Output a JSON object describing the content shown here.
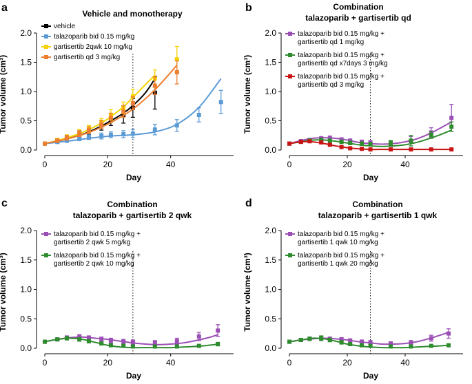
{
  "chart_data": [
    {
      "panel": "a",
      "type": "line",
      "title": "Vehicle and monotherapy",
      "title_lines": [
        "Vehicle and monotherapy"
      ],
      "xlabel": "Day",
      "ylabel": "Tumor volume (cm³)",
      "xlim": [
        0,
        60
      ],
      "ylim": [
        0,
        2.0
      ],
      "xticks": [
        0,
        20,
        40
      ],
      "yticks": [
        0.0,
        0.5,
        1.0,
        1.5,
        2.0
      ],
      "ytick_labels": [
        "0.0",
        "0.5",
        "1.0",
        "1.5",
        "2.0"
      ],
      "vline_x": 28,
      "series": [
        {
          "name": "vehicle",
          "legend_lines": [
            "vehicle"
          ],
          "color": "#000000",
          "x": [
            0,
            4,
            7,
            11,
            14,
            18,
            21,
            25,
            28,
            35
          ],
          "y": [
            0.11,
            0.16,
            0.2,
            0.27,
            0.33,
            0.42,
            0.52,
            0.6,
            0.72,
            0.98
          ],
          "err": [
            0.02,
            0.03,
            0.04,
            0.06,
            0.06,
            0.08,
            0.1,
            0.14,
            0.16,
            0.28
          ],
          "fit_x": [
            0,
            4,
            7,
            11,
            14,
            18,
            21,
            25,
            28,
            32,
            35
          ],
          "fit_y": [
            0.11,
            0.15,
            0.19,
            0.25,
            0.31,
            0.41,
            0.5,
            0.63,
            0.76,
            0.98,
            1.22
          ]
        },
        {
          "name": "talazoparib bid 0.15 mg/kg",
          "legend_lines": [
            "talazoparib bid 0.15 mg/kg"
          ],
          "color": "#5b9bd5",
          "x": [
            0,
            4,
            7,
            11,
            14,
            18,
            21,
            25,
            28,
            35,
            42,
            49,
            56
          ],
          "y": [
            0.11,
            0.14,
            0.17,
            0.2,
            0.22,
            0.24,
            0.26,
            0.27,
            0.28,
            0.35,
            0.42,
            0.6,
            0.82
          ],
          "err": [
            0.02,
            0.03,
            0.04,
            0.04,
            0.04,
            0.05,
            0.05,
            0.06,
            0.07,
            0.09,
            0.1,
            0.12,
            0.2
          ],
          "fit_x": [
            0,
            7,
            14,
            21,
            28,
            35,
            42,
            49,
            56
          ],
          "fit_y": [
            0.11,
            0.15,
            0.2,
            0.24,
            0.26,
            0.31,
            0.44,
            0.73,
            1.22
          ]
        },
        {
          "name": "gartisertib 2qwk 10 mg/kg",
          "legend_lines": [
            "gartisertib 2qwk 10 mg/kg"
          ],
          "color": "#f5d200",
          "x": [
            0,
            4,
            7,
            11,
            14,
            18,
            21,
            25,
            28,
            35,
            42
          ],
          "y": [
            0.11,
            0.17,
            0.22,
            0.3,
            0.36,
            0.47,
            0.6,
            0.72,
            0.92,
            1.22,
            1.55
          ],
          "err": [
            0.02,
            0.03,
            0.04,
            0.05,
            0.06,
            0.07,
            0.09,
            0.1,
            0.12,
            0.15,
            0.22
          ],
          "fit_x": [
            0,
            4,
            7,
            11,
            14,
            18,
            21,
            25,
            28,
            32,
            35
          ],
          "fit_y": [
            0.11,
            0.16,
            0.21,
            0.28,
            0.35,
            0.46,
            0.57,
            0.74,
            0.9,
            1.12,
            1.28
          ]
        },
        {
          "name": "gartisertib qd 3 mg/kg",
          "legend_lines": [
            "gartisertib qd 3 mg/kg"
          ],
          "color": "#ed7d31",
          "x": [
            0,
            4,
            7,
            11,
            14,
            18,
            21,
            25,
            28,
            35,
            42
          ],
          "y": [
            0.11,
            0.16,
            0.21,
            0.28,
            0.34,
            0.44,
            0.55,
            0.66,
            0.8,
            1.1,
            1.33
          ],
          "err": [
            0.02,
            0.03,
            0.04,
            0.05,
            0.06,
            0.07,
            0.08,
            0.1,
            0.11,
            0.15,
            0.2
          ],
          "fit_x": [
            0,
            7,
            14,
            21,
            28,
            35,
            42
          ],
          "fit_y": [
            0.11,
            0.19,
            0.3,
            0.47,
            0.7,
            1.03,
            1.45
          ]
        }
      ]
    },
    {
      "panel": "b",
      "type": "line",
      "title": "Combination talazoparib + gartisertib qd",
      "title_lines": [
        "Combination",
        "talazoparib + gartisertib qd"
      ],
      "xlabel": "Day",
      "ylabel": "Tumor volume (cm³)",
      "xlim": [
        0,
        60
      ],
      "ylim": [
        0,
        2.0
      ],
      "xticks": [
        0,
        20,
        40
      ],
      "yticks": [
        0.0,
        0.5,
        1.0,
        1.5,
        2.0
      ],
      "ytick_labels": [
        "0.0",
        "0.5",
        "1.0",
        "1.5",
        "2.0"
      ],
      "vline_x": 28,
      "series": [
        {
          "name": "talazoparib bid 0.15 mg/kg + gartisertib qd 1 mg/kg",
          "legend_lines": [
            "talazoparib bid 0.15 mg/kg +",
            "gartisertib qd 1 mg/kg"
          ],
          "color": "#9b4fb5",
          "x": [
            0,
            4,
            7,
            11,
            14,
            18,
            21,
            25,
            28,
            35,
            42,
            49,
            56
          ],
          "y": [
            0.11,
            0.15,
            0.17,
            0.19,
            0.2,
            0.17,
            0.15,
            0.13,
            0.12,
            0.11,
            0.15,
            0.3,
            0.55
          ],
          "err": [
            0.02,
            0.03,
            0.03,
            0.04,
            0.04,
            0.04,
            0.04,
            0.04,
            0.04,
            0.05,
            0.08,
            0.08,
            0.23
          ],
          "fit_x": [
            0,
            4,
            8,
            12,
            16,
            20,
            24,
            28,
            32,
            36,
            40,
            44,
            48,
            52,
            56
          ],
          "fit_y": [
            0.11,
            0.16,
            0.2,
            0.21,
            0.2,
            0.17,
            0.13,
            0.11,
            0.1,
            0.11,
            0.14,
            0.19,
            0.27,
            0.37,
            0.48
          ]
        },
        {
          "name": "talazoparib bid 0.15 mg/kg + gartisertib qd x7days 3 mg/kg",
          "legend_lines": [
            "talazoparib bid 0.15 mg/kg +",
            "gartisertib qd x7days 3 mg/kg"
          ],
          "color": "#2e8b2e",
          "x": [
            0,
            4,
            7,
            11,
            14,
            18,
            21,
            25,
            28,
            35,
            42,
            49,
            56
          ],
          "y": [
            0.11,
            0.14,
            0.16,
            0.17,
            0.16,
            0.14,
            0.12,
            0.11,
            0.1,
            0.12,
            0.16,
            0.26,
            0.4
          ],
          "err": [
            0.02,
            0.02,
            0.03,
            0.03,
            0.03,
            0.03,
            0.03,
            0.03,
            0.03,
            0.04,
            0.09,
            0.06,
            0.08
          ],
          "fit_x": [
            0,
            4,
            8,
            12,
            16,
            20,
            24,
            28,
            32,
            36,
            40,
            44,
            48,
            52,
            56
          ],
          "fit_y": [
            0.11,
            0.14,
            0.17,
            0.17,
            0.15,
            0.12,
            0.09,
            0.07,
            0.06,
            0.07,
            0.09,
            0.13,
            0.19,
            0.26,
            0.34
          ]
        },
        {
          "name": "talazoparib bid 0.15 mg/kg + gartisertib qd 3 mg/kg",
          "legend_lines": [
            "talazoparib bid 0.15 mg/kg +",
            "gartisertib qd 3 mg/kg"
          ],
          "color": "#c81414",
          "x": [
            0,
            4,
            7,
            11,
            14,
            18,
            21,
            25,
            28,
            35,
            42,
            49,
            56
          ],
          "y": [
            0.11,
            0.14,
            0.15,
            0.13,
            0.09,
            0.05,
            0.03,
            0.02,
            0.01,
            0.01,
            0.01,
            0.01,
            0.01
          ],
          "err": [
            0.02,
            0.02,
            0.02,
            0.02,
            0.02,
            0.01,
            0.01,
            0.01,
            0.01,
            0.01,
            0.01,
            0.01,
            0.01
          ],
          "fit_x": [
            0,
            4,
            8,
            12,
            16,
            20,
            24,
            28,
            32,
            36,
            40,
            44,
            48,
            52,
            56
          ],
          "fit_y": [
            0.11,
            0.14,
            0.14,
            0.11,
            0.07,
            0.04,
            0.02,
            0.01,
            0.01,
            0.01,
            0.01,
            0.01,
            0.01,
            0.01,
            0.01
          ]
        }
      ]
    },
    {
      "panel": "c",
      "type": "line",
      "title": "Combination talazoparib + gartisertib 2 qwk",
      "title_lines": [
        "Combination",
        "talazoparib + gartisertib 2 qwk"
      ],
      "xlabel": "Day",
      "ylabel": "Tumor volume (cm³)",
      "xlim": [
        0,
        60
      ],
      "ylim": [
        0,
        2.0
      ],
      "xticks": [
        0,
        20,
        40
      ],
      "yticks": [
        0.0,
        0.5,
        1.0,
        1.5,
        2.0
      ],
      "ytick_labels": [
        "0.0",
        "0.5",
        "1.0",
        "1.5",
        "2.0"
      ],
      "vline_x": 28,
      "series": [
        {
          "name": "talazoparib bid 0.15 mg/kg + gartisertib 2 qwk 5 mg/kg",
          "legend_lines": [
            "talazoparib bid 0.15 mg/kg +",
            "gartisertib 2 qwk 5 mg/kg"
          ],
          "color": "#9b4fb5",
          "x": [
            0,
            4,
            7,
            11,
            14,
            18,
            21,
            25,
            28,
            35,
            42,
            49,
            55
          ],
          "y": [
            0.11,
            0.15,
            0.18,
            0.19,
            0.17,
            0.15,
            0.13,
            0.11,
            0.1,
            0.09,
            0.12,
            0.2,
            0.3
          ],
          "err": [
            0.02,
            0.02,
            0.03,
            0.04,
            0.04,
            0.04,
            0.04,
            0.04,
            0.04,
            0.04,
            0.05,
            0.07,
            0.1
          ],
          "fit_x": [
            0,
            4,
            8,
            12,
            16,
            20,
            24,
            28,
            32,
            36,
            40,
            44,
            48,
            52,
            55
          ],
          "fit_y": [
            0.11,
            0.15,
            0.18,
            0.19,
            0.17,
            0.15,
            0.12,
            0.09,
            0.07,
            0.06,
            0.07,
            0.09,
            0.13,
            0.18,
            0.23
          ]
        },
        {
          "name": "talazoparib bid 0.15 mg/kg + gartisertib 2 qwk 10 mg/kg",
          "legend_lines": [
            "talazoparib bid 0.15 mg/kg +",
            "gartisertib 2 qwk 10 mg/kg"
          ],
          "color": "#2e8b2e",
          "x": [
            0,
            4,
            7,
            11,
            14,
            18,
            21,
            25,
            28,
            35,
            42,
            49,
            55
          ],
          "y": [
            0.11,
            0.15,
            0.17,
            0.15,
            0.12,
            0.08,
            0.05,
            0.04,
            0.03,
            0.03,
            0.03,
            0.04,
            0.07
          ],
          "err": [
            0.02,
            0.02,
            0.03,
            0.03,
            0.03,
            0.02,
            0.02,
            0.02,
            0.01,
            0.01,
            0.01,
            0.01,
            0.03
          ],
          "fit_x": [
            0,
            4,
            8,
            12,
            16,
            20,
            24,
            28,
            32,
            36,
            40,
            44,
            48,
            52,
            55
          ],
          "fit_y": [
            0.11,
            0.15,
            0.17,
            0.15,
            0.1,
            0.05,
            0.02,
            0.01,
            0.01,
            0.01,
            0.01,
            0.02,
            0.03,
            0.05,
            0.07
          ]
        }
      ]
    },
    {
      "panel": "d",
      "type": "line",
      "title": "Combination talazoparib + gartisertib 1 qwk",
      "title_lines": [
        "Combination",
        "talazoparib + gartisertib 1 qwk"
      ],
      "xlabel": "Day",
      "ylabel": "Tumor volume (cm³)",
      "xlim": [
        0,
        60
      ],
      "ylim": [
        0,
        2.0
      ],
      "xticks": [
        0,
        20,
        40
      ],
      "yticks": [
        0.0,
        0.5,
        1.0,
        1.5,
        2.0
      ],
      "ytick_labels": [
        "0.0",
        "0.5",
        "1.0",
        "1.5",
        "2.0"
      ],
      "vline_x": 28,
      "series": [
        {
          "name": "talazoparib bid 0.15 mg/kg + gartisertib 1 qwk 10 mg/kg",
          "legend_lines": [
            "talazoparib bid 0.15 mg/kg +",
            "gartisertib 1 qwk 10 mg/kg"
          ],
          "color": "#9b4fb5",
          "x": [
            0,
            4,
            7,
            11,
            14,
            18,
            21,
            25,
            28,
            35,
            42,
            49,
            55
          ],
          "y": [
            0.11,
            0.14,
            0.16,
            0.17,
            0.16,
            0.15,
            0.13,
            0.11,
            0.1,
            0.08,
            0.1,
            0.17,
            0.25
          ],
          "err": [
            0.02,
            0.02,
            0.03,
            0.03,
            0.03,
            0.03,
            0.03,
            0.03,
            0.03,
            0.03,
            0.03,
            0.05,
            0.08
          ],
          "fit_x": [
            0,
            4,
            8,
            12,
            16,
            20,
            24,
            28,
            32,
            36,
            40,
            44,
            48,
            52,
            55
          ],
          "fit_y": [
            0.11,
            0.14,
            0.16,
            0.17,
            0.16,
            0.14,
            0.11,
            0.09,
            0.07,
            0.07,
            0.08,
            0.11,
            0.16,
            0.22,
            0.27
          ]
        },
        {
          "name": "talazoparib bid 0.15 mg/kg + gartisertib 1 qwk 20 mg/kg",
          "legend_lines": [
            "talazoparib bid 0.15 mg/kg +",
            "gartisertib 1 qwk 20 mg/kg"
          ],
          "color": "#2e8b2e",
          "x": [
            0,
            4,
            7,
            11,
            14,
            18,
            21,
            25,
            28,
            35,
            42,
            49,
            55
          ],
          "y": [
            0.11,
            0.14,
            0.16,
            0.17,
            0.14,
            0.1,
            0.07,
            0.05,
            0.04,
            0.03,
            0.03,
            0.04,
            0.05
          ],
          "err": [
            0.02,
            0.02,
            0.03,
            0.04,
            0.03,
            0.03,
            0.02,
            0.02,
            0.02,
            0.01,
            0.01,
            0.01,
            0.02
          ],
          "fit_x": [
            0,
            4,
            8,
            12,
            16,
            20,
            24,
            28,
            32,
            36,
            40,
            44,
            48,
            52,
            55
          ],
          "fit_y": [
            0.11,
            0.14,
            0.17,
            0.16,
            0.12,
            0.07,
            0.04,
            0.02,
            0.01,
            0.01,
            0.01,
            0.02,
            0.03,
            0.04,
            0.05
          ]
        }
      ]
    }
  ]
}
